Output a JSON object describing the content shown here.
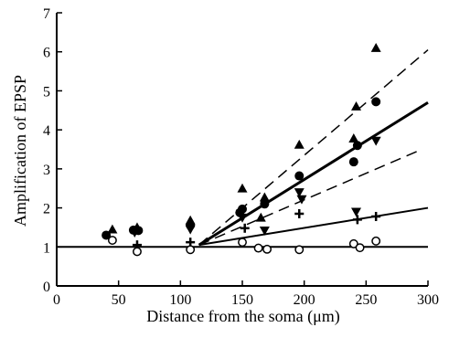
{
  "chart_data": {
    "type": "scatter",
    "title": "",
    "xlabel": "Distance from the soma (μm)",
    "ylabel": "Amplification of EPSP",
    "xlim": [
      0,
      300
    ],
    "ylim": [
      0,
      7
    ],
    "x_ticks": [
      "0",
      "50",
      "100",
      "150",
      "200",
      "250",
      "300"
    ],
    "y_ticks": [
      "0",
      "1",
      "2",
      "3",
      "4",
      "5",
      "6",
      "7"
    ],
    "grid": false,
    "legend": "none",
    "series": [
      {
        "marker": "filled-triangle-up",
        "points": [
          [
            45,
            1.45
          ],
          [
            65,
            1.5
          ],
          [
            108,
            1.68
          ],
          [
            150,
            2.5
          ],
          [
            165,
            1.75
          ],
          [
            168,
            2.27
          ],
          [
            196,
            3.62
          ],
          [
            240,
            3.78
          ],
          [
            242,
            4.6
          ],
          [
            258,
            6.1
          ]
        ]
      },
      {
        "marker": "filled-circle",
        "points": [
          [
            40,
            1.3
          ],
          [
            62,
            1.43
          ],
          [
            66,
            1.42
          ],
          [
            108,
            1.55
          ],
          [
            148,
            1.88
          ],
          [
            150,
            1.97
          ],
          [
            168,
            2.1
          ],
          [
            196,
            2.82
          ],
          [
            240,
            3.18
          ],
          [
            243,
            3.6
          ],
          [
            258,
            4.72
          ]
        ]
      },
      {
        "marker": "filled-triangle-down",
        "points": [
          [
            63,
            1.37
          ],
          [
            108,
            1.45
          ],
          [
            150,
            1.75
          ],
          [
            168,
            1.42
          ],
          [
            196,
            2.4
          ],
          [
            198,
            2.22
          ],
          [
            242,
            1.9
          ],
          [
            258,
            3.72
          ]
        ]
      },
      {
        "marker": "plus",
        "points": [
          [
            65,
            1.05
          ],
          [
            108,
            1.12
          ],
          [
            152,
            1.48
          ],
          [
            196,
            1.85
          ],
          [
            243,
            1.7
          ],
          [
            258,
            1.78
          ]
        ]
      },
      {
        "marker": "open-circle",
        "points": [
          [
            45,
            1.17
          ],
          [
            65,
            0.88
          ],
          [
            108,
            0.93
          ],
          [
            150,
            1.12
          ],
          [
            163,
            0.97
          ],
          [
            170,
            0.94
          ],
          [
            196,
            0.93
          ],
          [
            240,
            1.08
          ],
          [
            245,
            0.98
          ],
          [
            258,
            1.15
          ]
        ]
      }
    ],
    "lines": [
      {
        "style": "solid-thick",
        "x": [
          115,
          300
        ],
        "y": [
          1.05,
          4.7
        ]
      },
      {
        "style": "dashed",
        "x": [
          115,
          300
        ],
        "y": [
          1.05,
          6.05
        ]
      },
      {
        "style": "dashed",
        "x": [
          115,
          295
        ],
        "y": [
          1.05,
          3.5
        ]
      },
      {
        "style": "solid",
        "x": [
          115,
          300
        ],
        "y": [
          1.05,
          2.0
        ]
      },
      {
        "style": "solid",
        "x": [
          0,
          300
        ],
        "y": [
          1.0,
          1.0
        ]
      }
    ]
  }
}
